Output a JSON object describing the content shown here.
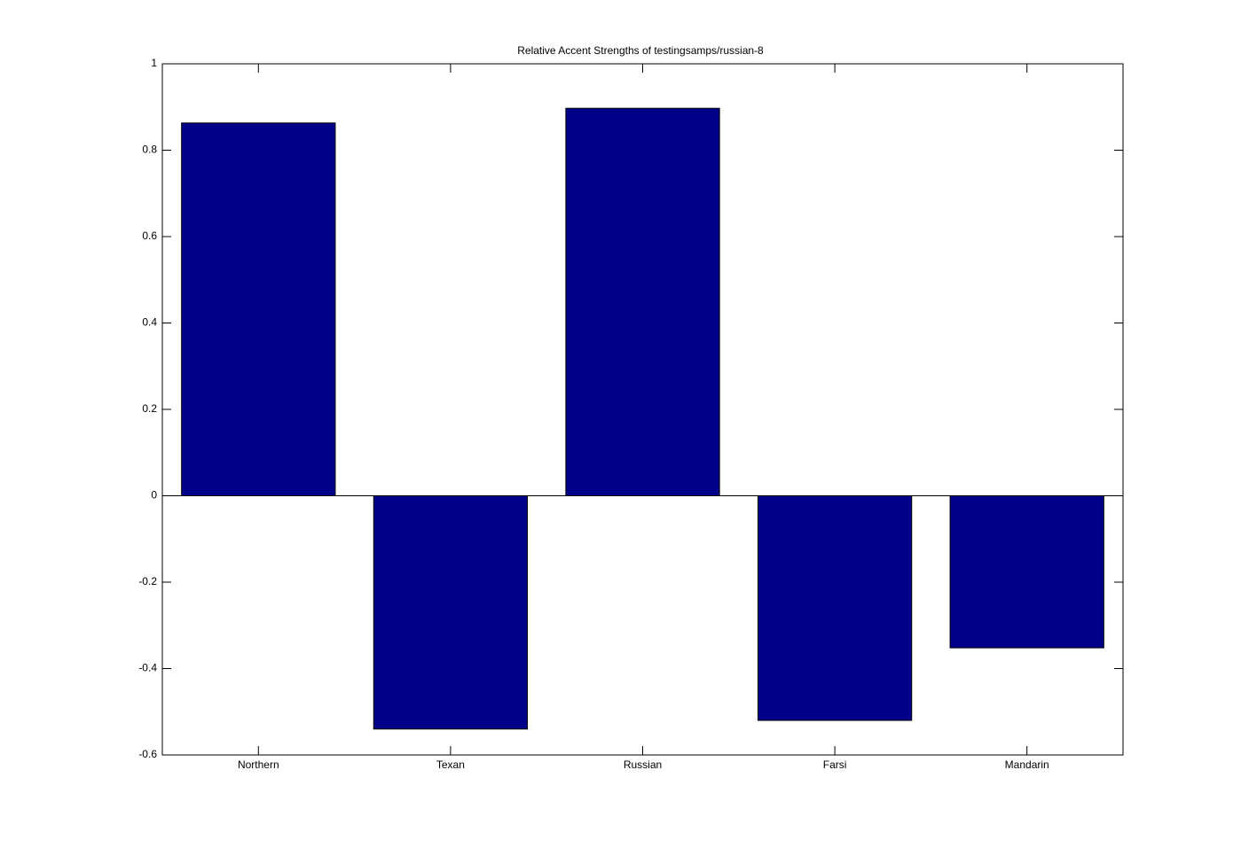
{
  "chart_data": {
    "type": "bar",
    "title": "Relative Accent Strengths of testingsamps/russian-8",
    "categories": [
      "Northern",
      "Texan",
      "Russian",
      "Farsi",
      "Mandarin"
    ],
    "values": [
      0.863,
      -0.54,
      0.897,
      -0.52,
      -0.352
    ],
    "color": "#000088",
    "ylim": [
      -0.6,
      1
    ],
    "yticks": [
      -0.6,
      -0.4,
      -0.2,
      0,
      0.2,
      0.4,
      0.6,
      0.8,
      1
    ],
    "grid": false
  }
}
